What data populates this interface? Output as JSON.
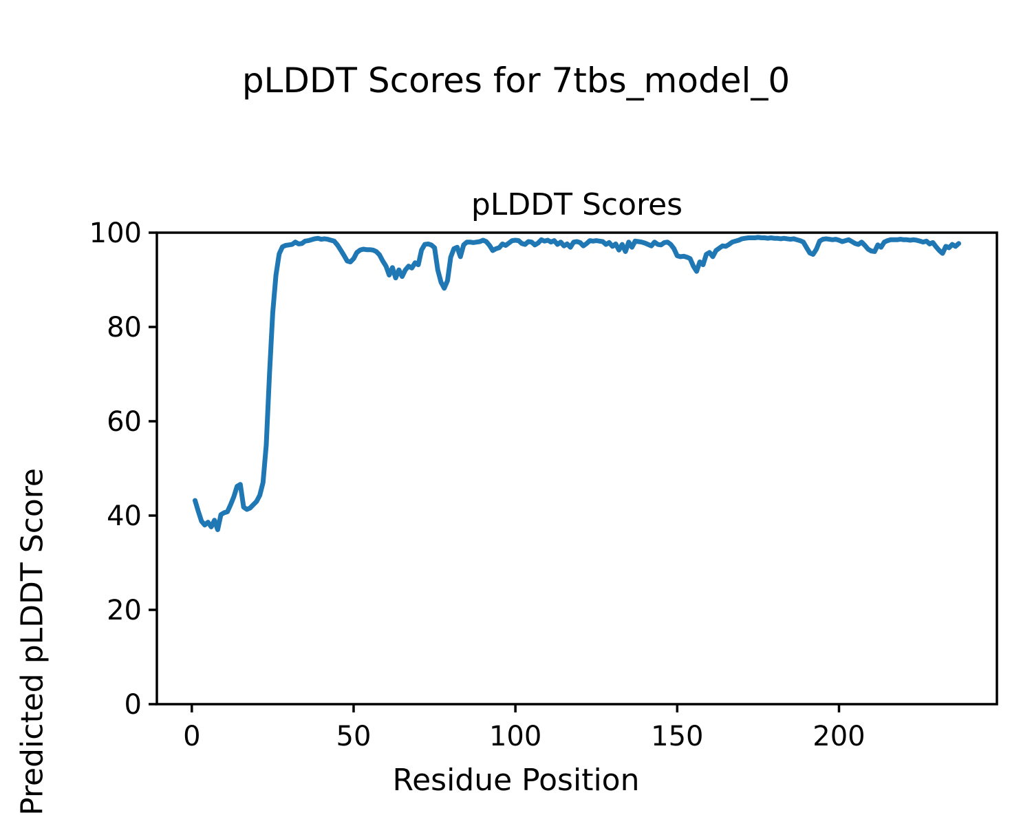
{
  "figure": {
    "suptitle": "pLDDT Scores for 7tbs_model_0",
    "background_color": "#ffffff",
    "text_color": "#000000"
  },
  "chart_data": {
    "type": "line",
    "title": "pLDDT Scores",
    "xlabel": "Residue Position",
    "ylabel": "Predicted pLDDT Score",
    "xlim": [
      -10.8,
      248.8
    ],
    "ylim": [
      0,
      100
    ],
    "xticks": [
      0,
      50,
      100,
      150,
      200
    ],
    "yticks": [
      0,
      20,
      40,
      60,
      80,
      100
    ],
    "grid": false,
    "legend": "none",
    "line_color": "#1f77b4",
    "line_width": 7,
    "spine_color": "#000000",
    "series": [
      {
        "name": "pLDDT",
        "x_start": 1,
        "x_step": 1,
        "values": [
          43.2,
          40.9,
          38.8,
          38.0,
          38.6,
          37.6,
          39.0,
          37.0,
          40.2,
          40.6,
          40.8,
          42.3,
          44.0,
          46.2,
          46.6,
          41.8,
          41.3,
          41.6,
          42.3,
          43.0,
          44.3,
          47.0,
          55.0,
          70.0,
          83.0,
          91.0,
          95.5,
          97.0,
          97.3,
          97.4,
          97.5,
          98.0,
          97.6,
          97.7,
          98.2,
          98.3,
          98.5,
          98.7,
          98.8,
          98.6,
          98.7,
          98.6,
          98.4,
          98.2,
          97.4,
          96.3,
          95.2,
          94.0,
          93.8,
          94.5,
          95.8,
          96.3,
          96.5,
          96.4,
          96.4,
          96.3,
          96.0,
          95.3,
          94.0,
          92.9,
          91.0,
          92.6,
          90.4,
          92.1,
          90.7,
          92.1,
          92.9,
          92.5,
          93.6,
          93.2,
          96.3,
          97.5,
          97.6,
          97.4,
          96.8,
          92.1,
          89.5,
          88.2,
          89.8,
          94.8,
          96.6,
          96.9,
          94.9,
          97.4,
          98.0,
          98.0,
          97.9,
          98.0,
          98.1,
          98.4,
          98.1,
          97.3,
          96.2,
          96.6,
          96.8,
          97.6,
          97.3,
          97.8,
          98.3,
          98.4,
          98.3,
          97.7,
          97.5,
          98.1,
          98.0,
          97.4,
          97.8,
          98.5,
          98.2,
          98.4,
          98.0,
          98.3,
          97.5,
          98.0,
          97.2,
          97.6,
          96.9,
          98.0,
          98.1,
          97.9,
          97.2,
          97.7,
          98.3,
          98.2,
          98.3,
          98.2,
          98.1,
          97.5,
          97.9,
          97.1,
          97.6,
          96.3,
          97.5,
          96.0,
          98.0,
          96.9,
          98.2,
          98.1,
          98.0,
          97.8,
          97.5,
          97.2,
          98.0,
          97.5,
          97.4,
          97.9,
          98.0,
          97.5,
          96.6,
          95.1,
          94.9,
          95.0,
          94.8,
          94.5,
          92.9,
          91.8,
          93.8,
          93.2,
          95.4,
          95.8,
          94.9,
          96.2,
          96.7,
          97.2,
          97.1,
          97.5,
          98.0,
          98.2,
          98.4,
          98.7,
          98.8,
          98.9,
          98.9,
          98.9,
          99.0,
          98.9,
          98.9,
          98.8,
          98.9,
          98.8,
          98.8,
          98.7,
          98.8,
          98.7,
          98.6,
          98.7,
          98.5,
          98.3,
          98.0,
          96.8,
          95.7,
          95.4,
          96.5,
          98.2,
          98.6,
          98.7,
          98.6,
          98.5,
          98.6,
          98.4,
          98.1,
          98.3,
          98.5,
          98.1,
          97.7,
          97.5,
          98.0,
          97.3,
          96.5,
          96.1,
          96.0,
          97.4,
          96.9,
          98.0,
          98.3,
          98.5,
          98.5,
          98.5,
          98.6,
          98.5,
          98.5,
          98.4,
          98.5,
          98.4,
          98.2,
          98.0,
          98.2,
          97.6,
          97.9,
          97.0,
          96.2,
          95.6,
          97.1,
          96.8,
          97.5,
          97.1,
          97.7
        ]
      }
    ]
  }
}
